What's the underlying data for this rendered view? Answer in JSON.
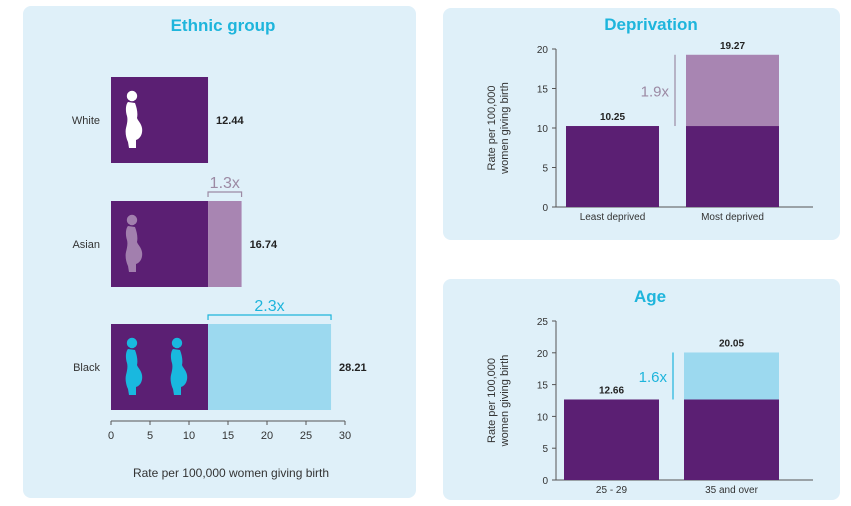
{
  "colors": {
    "panel_bg": "#dff0f9",
    "base_purple": "#5b1f73",
    "asian_excess": "#a885b2",
    "black_excess": "#9cd9ef",
    "teal_text": "#1eb5dc",
    "grey_text": "#9c8aa4",
    "white_figure": "#ffffff",
    "asian_figure": "#a27fae",
    "black_figure": "#19b8df",
    "title_color": "#1eb5dc",
    "axis_color": "#333333"
  },
  "chart_data": [
    {
      "id": "ethnic",
      "type": "bar",
      "orientation": "horizontal",
      "title": "Ethnic group",
      "xlabel": "Rate per 100,000 women giving birth",
      "xlim": [
        0,
        30
      ],
      "xticks": [
        "0",
        "5",
        "10",
        "15",
        "20",
        "25",
        "30"
      ],
      "categories": [
        "White",
        "Asian",
        "Black"
      ],
      "baseline": 12.44,
      "values": [
        12.44,
        16.74,
        28.21
      ],
      "value_labels": [
        "12.44",
        "16.74",
        "28.21"
      ],
      "ratio_labels": [
        "",
        "1.3x",
        "2.3x"
      ],
      "figure_icons": [
        {
          "icon": "pregnant-woman-icon",
          "count": 1,
          "color": "#ffffff"
        },
        {
          "icon": "pregnant-woman-icon",
          "count": 1,
          "color": "#a27fae"
        },
        {
          "icon": "pregnant-woman-icon",
          "count": 2,
          "color": "#19b8df"
        }
      ],
      "excess_colors": [
        "",
        "#a885b2",
        "#9cd9ef"
      ]
    },
    {
      "id": "deprivation",
      "type": "bar",
      "orientation": "vertical",
      "title": "Deprivation",
      "ylabel_lines": [
        "Rate per 100,000",
        "women giving birth"
      ],
      "ylim": [
        0,
        20
      ],
      "yticks": [
        "0",
        "5",
        "10",
        "15",
        "20"
      ],
      "categories": [
        "Least deprived",
        "Most deprived"
      ],
      "baseline": 10.25,
      "values": [
        10.25,
        19.27
      ],
      "value_labels": [
        "10.25",
        "19.27"
      ],
      "ratio_label": "1.9x",
      "excess_color": "#a885b2"
    },
    {
      "id": "age",
      "type": "bar",
      "orientation": "vertical",
      "title": "Age",
      "ylabel_lines": [
        "Rate per 100,000",
        "women giving birth"
      ],
      "ylim": [
        0,
        25
      ],
      "yticks": [
        "0",
        "5",
        "10",
        "15",
        "20",
        "25"
      ],
      "categories": [
        "25 - 29",
        "35 and over"
      ],
      "baseline": 12.66,
      "values": [
        12.66,
        20.05
      ],
      "value_labels": [
        "12.66",
        "20.05"
      ],
      "ratio_label": "1.6x",
      "excess_color": "#9cd9ef"
    }
  ]
}
